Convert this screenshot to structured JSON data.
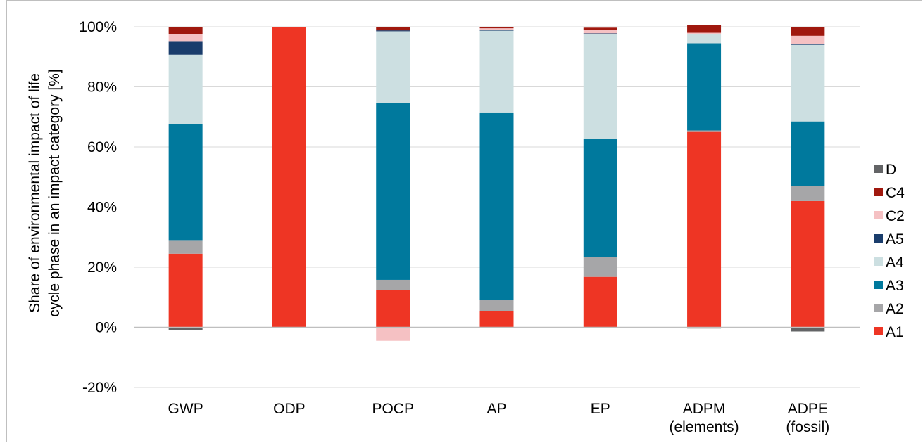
{
  "chart_data": {
    "type": "bar",
    "stacked": true,
    "title": "",
    "xlabel": "",
    "ylabel_lines": [
      "Share of environmental impact of life",
      "cycle phase in an impact category [%]"
    ],
    "ylim": [
      -20,
      100
    ],
    "yticks": [
      -20,
      0,
      20,
      40,
      60,
      80,
      100
    ],
    "ytick_labels": [
      "-20%",
      "0%",
      "20%",
      "40%",
      "60%",
      "80%",
      "100%"
    ],
    "grid": true,
    "legend_position": "right",
    "categories": [
      [
        "GWP"
      ],
      [
        "ODP"
      ],
      [
        "POCP"
      ],
      [
        "AP"
      ],
      [
        "EP"
      ],
      [
        "ADPM",
        "(elements)"
      ],
      [
        "ADPE",
        "(fossil)"
      ]
    ],
    "series": [
      {
        "name": "A1",
        "color": "#EE3524",
        "values": [
          24.5,
          100,
          12.5,
          5.5,
          16.8,
          65.0,
          42.0
        ]
      },
      {
        "name": "A2",
        "color": "#A6A6A8",
        "values": [
          4.3,
          0,
          3.3,
          3.5,
          6.7,
          0.5,
          5.0
        ]
      },
      {
        "name": "A3",
        "color": "#00799D",
        "values": [
          38.7,
          0,
          58.8,
          62.5,
          39.2,
          29.0,
          21.5
        ]
      },
      {
        "name": "A4",
        "color": "#CCDFE1",
        "values": [
          23.2,
          0,
          23.9,
          27.2,
          34.8,
          3.0,
          25.5
        ]
      },
      {
        "name": "A5",
        "color": "#1A3D6C",
        "values": [
          4.3,
          0,
          0.3,
          0.3,
          0.3,
          0,
          0.2
        ]
      },
      {
        "name": "C2",
        "color": "#F5C1C3",
        "values": [
          2.5,
          0,
          -4.5,
          0.5,
          1.2,
          0.5,
          2.8
        ]
      },
      {
        "name": "C4",
        "color": "#A0180E",
        "values": [
          2.5,
          0,
          1.2,
          0.5,
          0.7,
          2.5,
          3.0
        ]
      },
      {
        "name": "D",
        "color": "#636466",
        "values": [
          -1.0,
          0,
          0,
          0,
          0,
          -0.4,
          -1.4
        ]
      }
    ],
    "legend_order": [
      "D",
      "C4",
      "C2",
      "A5",
      "A4",
      "A3",
      "A2",
      "A1"
    ]
  }
}
